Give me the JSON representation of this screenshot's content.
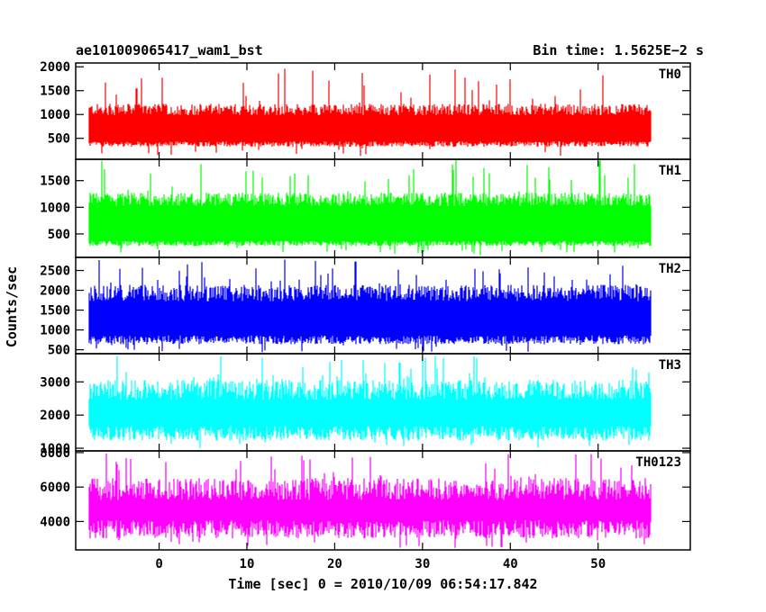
{
  "header": {
    "left_title": "ae101009065417_wam1_bst",
    "right_title": "Bin time: 1.5625E−2 s"
  },
  "chart_data": {
    "type": "line",
    "ylabel": "Counts/sec",
    "xlabel": "Time [sec] 0 = 2010/10/09 06:54:17.842",
    "xlim": [
      -9.5,
      60.5
    ],
    "x_ticks": [
      0,
      10,
      20,
      30,
      40,
      50
    ],
    "x_range_data": [
      -8.0,
      56.0
    ],
    "panels": [
      {
        "name": "TH0",
        "color": "#ff0000",
        "ylim": [
          60,
          2080
        ],
        "ticks": [
          500,
          1000,
          1500,
          2000
        ],
        "baseline": 380,
        "typical_high": 1200,
        "max": 2050,
        "trough_min": 120
      },
      {
        "name": "TH1",
        "color": "#00ff00",
        "ylim": [
          60,
          1900
        ],
        "ticks": [
          500,
          1000,
          1500
        ],
        "baseline": 320,
        "typical_high": 1250,
        "max": 1900,
        "trough_min": 100
      },
      {
        "name": "TH2",
        "color": "#0000ff",
        "ylim": [
          400,
          2830
        ],
        "ticks": [
          500,
          1000,
          1500,
          2000,
          2500
        ],
        "baseline": 750,
        "typical_high": 2100,
        "max": 2800,
        "trough_min": 420
      },
      {
        "name": "TH3",
        "color": "#00ffff",
        "ylim": [
          920,
          3850
        ],
        "ticks": [
          1000,
          2000,
          3000
        ],
        "baseline": 1450,
        "typical_high": 3000,
        "max": 3800,
        "trough_min": 1000
      },
      {
        "name": "TH0123",
        "color": "#ff00ff",
        "ylim": [
          2350,
          8100
        ],
        "ticks": [
          4000,
          6000,
          8000
        ],
        "baseline": 3550,
        "typical_high": 6400,
        "max": 7950,
        "trough_min": 2450
      }
    ]
  }
}
